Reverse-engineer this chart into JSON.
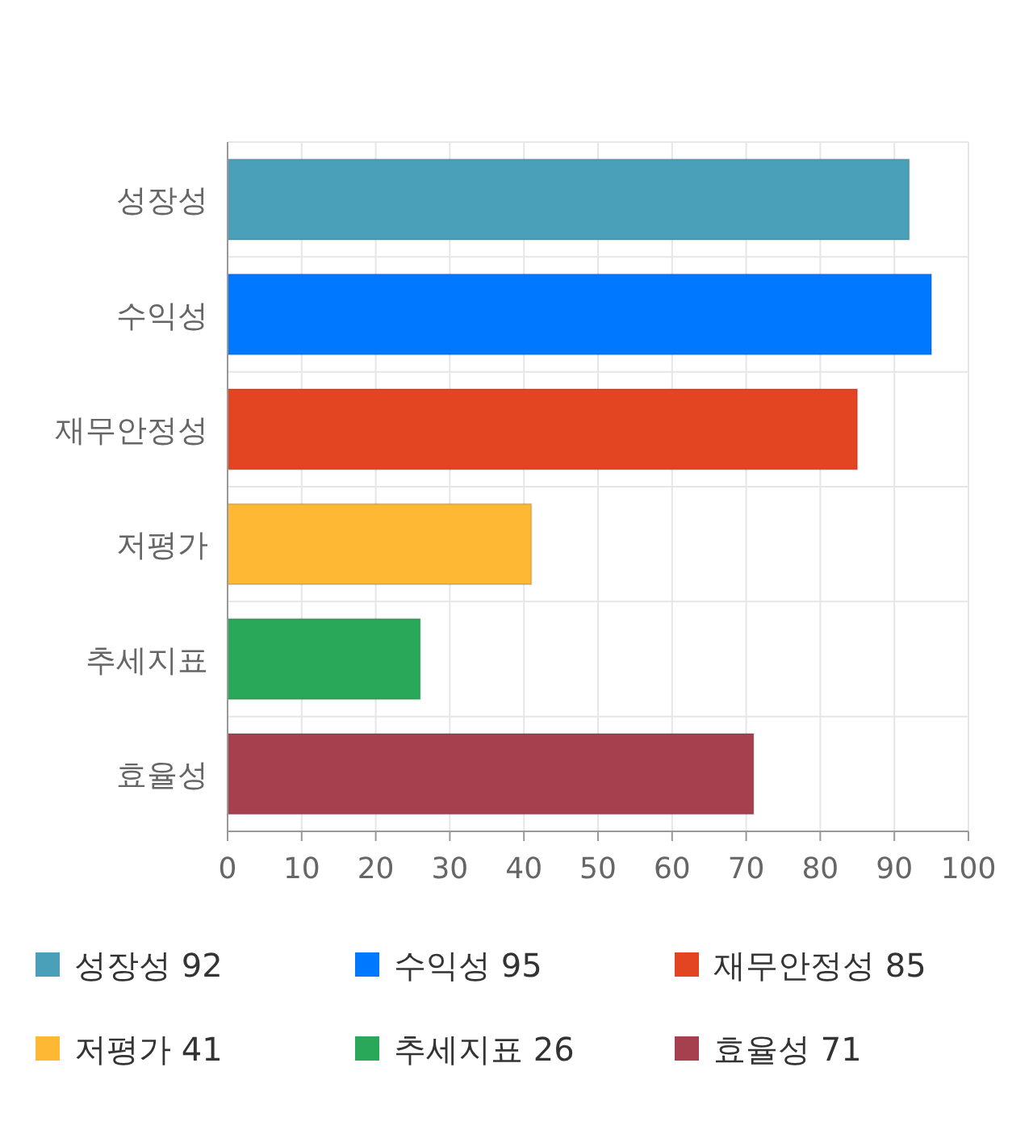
{
  "chart_data": {
    "type": "bar",
    "orientation": "horizontal",
    "categories": [
      "성장성",
      "수익성",
      "재무안정성",
      "저평가",
      "추세지표",
      "효율성"
    ],
    "series": [
      {
        "name": "성장성 92",
        "color": "#4aa0b9",
        "values": [
          92,
          null,
          null,
          null,
          null,
          null
        ]
      },
      {
        "name": "수익성 95",
        "color": "#0078ff",
        "values": [
          null,
          95,
          null,
          null,
          null,
          null
        ]
      },
      {
        "name": "재무안정성 85",
        "color": "#e34522",
        "values": [
          null,
          null,
          85,
          null,
          null,
          null
        ]
      },
      {
        "name": "저평가 41",
        "color": "#ffb833",
        "values": [
          null,
          null,
          null,
          41,
          null,
          null
        ]
      },
      {
        "name": "추세지표 26",
        "color": "#29a85a",
        "values": [
          null,
          null,
          null,
          null,
          26,
          null
        ]
      },
      {
        "name": "효율성 71",
        "color": "#a6404f",
        "values": [
          null,
          null,
          null,
          null,
          null,
          71
        ]
      }
    ],
    "xlim": [
      0,
      100
    ],
    "xticks": [
      0,
      10,
      20,
      30,
      40,
      50,
      60,
      70,
      80,
      90,
      100
    ],
    "grid": true,
    "legend": "bottom"
  }
}
